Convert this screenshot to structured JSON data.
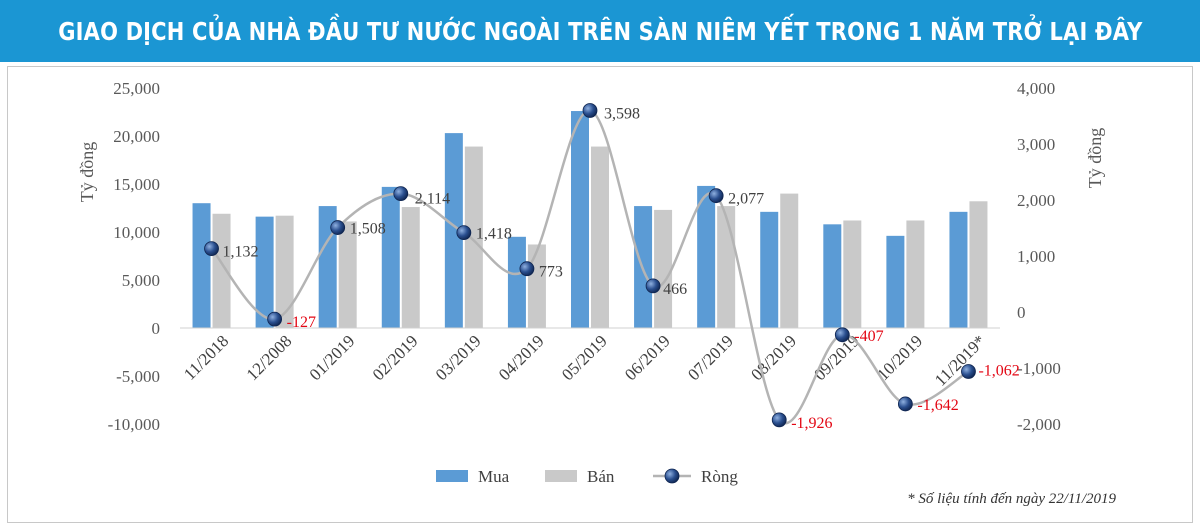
{
  "title": "GIAO DỊCH CỦA NHÀ ĐẦU TƯ NƯỚC NGOÀI TRÊN SÀN NIÊM YẾT TRONG 1 NĂM TRỞ LẠI ĐÂY",
  "footnote": "* Số liệu tính đến ngày 22/11/2019",
  "colors": {
    "banner": "#1b96d3",
    "mua": "#5b9bd5",
    "ban": "#c9c9c9",
    "rong_line": "#b4b4b4",
    "rong_marker": "#1f3f7a",
    "negative_label": "#e30613"
  },
  "chart_data": {
    "type": "bar",
    "categories": [
      "11/2018",
      "12/2008",
      "01/2019",
      "02/2019",
      "03/2019",
      "04/2019",
      "05/2019",
      "06/2019",
      "07/2019",
      "08/2019",
      "09/2019",
      "10/2019",
      "11/2019*"
    ],
    "series": [
      {
        "name": "Mua",
        "type": "bar",
        "axis": "left",
        "values": [
          13000,
          11600,
          12700,
          14700,
          20300,
          9500,
          22600,
          12700,
          14800,
          12100,
          10800,
          9600,
          12100
        ]
      },
      {
        "name": "Bán",
        "type": "bar",
        "axis": "left",
        "values": [
          11900,
          11700,
          11100,
          12600,
          18900,
          8700,
          18900,
          12300,
          12700,
          14000,
          11200,
          11200,
          13200
        ]
      },
      {
        "name": "Ròng",
        "type": "line",
        "axis": "right",
        "values": [
          1132,
          -127,
          1508,
          2114,
          1418,
          773,
          3598,
          466,
          2077,
          -1926,
          -407,
          -1642,
          -1062
        ]
      }
    ],
    "data_labels": [
      "1,132",
      "-127",
      "1,508",
      "2,114",
      "1,418",
      "773",
      "3,598",
      "466",
      "2,077",
      "-1,926",
      "-407",
      "-1,642",
      "-1,062"
    ],
    "y_left": {
      "label": "Tỷ đồng",
      "ylim": [
        -10000,
        25000
      ],
      "ticks": [
        "25,000",
        "20,000",
        "15,000",
        "10,000",
        "5,000",
        "0",
        "-5,000",
        "-10,000"
      ],
      "tick_values": [
        25000,
        20000,
        15000,
        10000,
        5000,
        0,
        -5000,
        -10000
      ]
    },
    "y_right": {
      "label": "Tỷ đồng",
      "ylim": [
        -2000,
        4000
      ],
      "ticks": [
        "4,000",
        "3,000",
        "2,000",
        "1,000",
        "0",
        "-1,000",
        "-2,000"
      ],
      "tick_values": [
        4000,
        3000,
        2000,
        1000,
        0,
        -1000,
        -2000
      ]
    },
    "legend": {
      "position": "bottom",
      "items": [
        "Mua",
        "Bán",
        "Ròng"
      ]
    },
    "grid": false
  }
}
